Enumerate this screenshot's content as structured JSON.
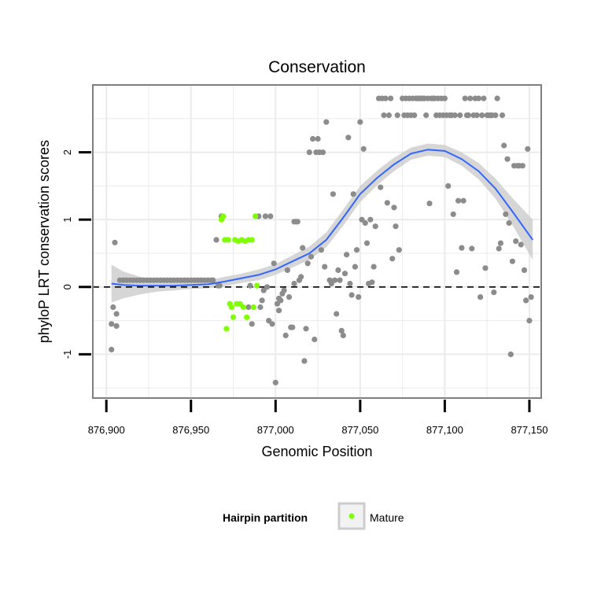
{
  "chart_data": {
    "type": "scatter",
    "title": "Conservation",
    "xlabel": "Genomic Position",
    "ylabel": "phyloP LRT conservation scores",
    "xlim": [
      876892,
      877157
    ],
    "ylim": [
      -1.65,
      3.0
    ],
    "x_ticks": [
      876900,
      876950,
      877000,
      877050,
      877100,
      877150
    ],
    "x_tick_labels": [
      "876,900",
      "876,950",
      "877,000",
      "877,050",
      "877,100",
      "877,150"
    ],
    "y_ticks": [
      -1,
      0,
      1,
      2
    ],
    "y_tick_labels": [
      "-1",
      "0",
      "1",
      "2"
    ],
    "grid": true,
    "reference_line": {
      "y": 0,
      "style": "dashed"
    },
    "legend": {
      "title": "Hairpin partition",
      "placement": "bottom",
      "entries": [
        {
          "label": "Mature",
          "color": "#7FFF00"
        }
      ]
    },
    "colors": {
      "points": "#8c8c8c",
      "mature": "#7FFF00",
      "smooth": "#3366FF",
      "band": "#cccccc",
      "panel_border": "#7f7f7f",
      "grid": "#ebebeb"
    },
    "series": [
      {
        "points": [
          [
            876903,
            -0.55
          ],
          [
            876903,
            -0.93
          ],
          [
            876904,
            -0.3
          ],
          [
            876905,
            0.66
          ],
          [
            876906,
            -0.58
          ],
          [
            876906,
            -0.4
          ],
          [
            876908,
            0.1
          ],
          [
            876910,
            0.1
          ],
          [
            876912,
            0.1
          ],
          [
            876914,
            0.1
          ],
          [
            876916,
            0.1
          ],
          [
            876918,
            0.1
          ],
          [
            876920,
            0.1
          ],
          [
            876922,
            0.1
          ],
          [
            876924,
            0.1
          ],
          [
            876926,
            0.1
          ],
          [
            876928,
            0.1
          ],
          [
            876930,
            0.1
          ],
          [
            876932,
            0.1
          ],
          [
            876934,
            0.1
          ],
          [
            876936,
            0.1
          ],
          [
            876938,
            0.1
          ],
          [
            876940,
            0.1
          ],
          [
            876942,
            0.1
          ],
          [
            876944,
            0.1
          ],
          [
            876946,
            0.1
          ],
          [
            876948,
            0.1
          ],
          [
            876950,
            0.1
          ],
          [
            876952,
            0.1
          ],
          [
            876954,
            0.1
          ],
          [
            876956,
            0.1
          ],
          [
            876958,
            0.1
          ],
          [
            876960,
            0.1
          ],
          [
            876962,
            0.1
          ],
          [
            876963,
            0.1
          ],
          [
            876965,
            0.7
          ],
          [
            876966,
            0.02
          ],
          [
            876967,
            0.02
          ],
          [
            876968,
            1.05
          ],
          [
            876984,
            -0.3
          ],
          [
            876985,
            0.02
          ],
          [
            876986,
            -0.55
          ],
          [
            876990,
            1.05
          ],
          [
            876991,
            -0.3
          ],
          [
            876992,
            -0.2
          ],
          [
            876993,
            -0.05
          ],
          [
            876994,
            1.05
          ],
          [
            876995,
            0.0
          ],
          [
            876996,
            -0.5
          ],
          [
            876997,
            1.05
          ],
          [
            876998,
            -0.55
          ],
          [
            876999,
            0.35
          ],
          [
            877000,
            -1.42
          ],
          [
            877001,
            -0.25
          ],
          [
            877002,
            -0.17
          ],
          [
            877002,
            -0.35
          ],
          [
            877003,
            -0.2
          ],
          [
            877004,
            -0.1
          ],
          [
            877005,
            -0.05
          ],
          [
            877006,
            -0.72
          ],
          [
            877007,
            0.25
          ],
          [
            877008,
            -0.15
          ],
          [
            877009,
            -0.6
          ],
          [
            877010,
            -0.6
          ],
          [
            877011,
            0.05
          ],
          [
            877011,
            0.97
          ],
          [
            877012,
            0.97
          ],
          [
            877013,
            0.97
          ],
          [
            877014,
            0.1
          ],
          [
            877015,
            0.15
          ],
          [
            877016,
            0.58
          ],
          [
            877017,
            -1.1
          ],
          [
            877018,
            -0.62
          ],
          [
            877019,
            0.35
          ],
          [
            877020,
            2.0
          ],
          [
            877021,
            0.45
          ],
          [
            877022,
            2.2
          ],
          [
            877023,
            -0.78
          ],
          [
            877024,
            2.0
          ],
          [
            877025,
            2.2
          ],
          [
            877026,
            2.0
          ],
          [
            877027,
            0.55
          ],
          [
            877028,
            2.0
          ],
          [
            877029,
            0.3
          ],
          [
            877030,
            2.45
          ],
          [
            877032,
            0.1
          ],
          [
            877033,
            0.05
          ],
          [
            877034,
            1.38
          ],
          [
            877035,
            0.1
          ],
          [
            877036,
            -0.4
          ],
          [
            877037,
            0.25
          ],
          [
            877038,
            0.1
          ],
          [
            877039,
            -0.65
          ],
          [
            877040,
            -0.72
          ],
          [
            877041,
            0.2
          ],
          [
            877042,
            0.48
          ],
          [
            877043,
            2.22
          ],
          [
            877044,
            0.05
          ],
          [
            877045,
            -0.12
          ],
          [
            877046,
            1.38
          ],
          [
            877047,
            0.3
          ],
          [
            877048,
            0.55
          ],
          [
            877049,
            -0.15
          ],
          [
            877050,
            2.45
          ],
          [
            877051,
            1.0
          ],
          [
            877052,
            2.05
          ],
          [
            877053,
            0.95
          ],
          [
            877054,
            0.65
          ],
          [
            877055,
            0.05
          ],
          [
            877056,
            1.0
          ],
          [
            877057,
            0.07
          ],
          [
            877058,
            0.3
          ],
          [
            877059,
            0.9
          ],
          [
            877061,
            2.8
          ],
          [
            877062,
            1.48
          ],
          [
            877063,
            2.8
          ],
          [
            877064,
            2.55
          ],
          [
            877065,
            2.8
          ],
          [
            877066,
            1.25
          ],
          [
            877067,
            2.55
          ],
          [
            877068,
            2.8
          ],
          [
            877069,
            0.42
          ],
          [
            877070,
            1.18
          ],
          [
            877071,
            0.9
          ],
          [
            877072,
            2.55
          ],
          [
            877073,
            0.55
          ],
          [
            877075,
            2.8
          ],
          [
            877076,
            2.55
          ],
          [
            877077,
            2.8
          ],
          [
            877078,
            2.55
          ],
          [
            877079,
            2.8
          ],
          [
            877080,
            2.55
          ],
          [
            877081,
            2.8
          ],
          [
            877082,
            2.55
          ],
          [
            877083,
            2.8
          ],
          [
            877084,
            2.8
          ],
          [
            877085,
            2.8
          ],
          [
            877086,
            2.8
          ],
          [
            877087,
            2.8
          ],
          [
            877088,
            2.8
          ],
          [
            877089,
            2.55
          ],
          [
            877090,
            2.8
          ],
          [
            877091,
            1.24
          ],
          [
            877092,
            2.8
          ],
          [
            877093,
            2.8
          ],
          [
            877094,
            2.8
          ],
          [
            877095,
            2.55
          ],
          [
            877096,
            2.8
          ],
          [
            877097,
            2.55
          ],
          [
            877098,
            2.8
          ],
          [
            877099,
            2.55
          ],
          [
            877100,
            2.8
          ],
          [
            877101,
            2.55
          ],
          [
            877102,
            1.5
          ],
          [
            877103,
            2.55
          ],
          [
            877104,
            2.55
          ],
          [
            877105,
            1.08
          ],
          [
            877106,
            2.55
          ],
          [
            877107,
            0.22
          ],
          [
            877108,
            1.28
          ],
          [
            877109,
            2.55
          ],
          [
            877110,
            0.58
          ],
          [
            877111,
            1.28
          ],
          [
            877112,
            2.8
          ],
          [
            877113,
            2.55
          ],
          [
            877114,
            2.55
          ],
          [
            877115,
            2.8
          ],
          [
            877116,
            0.57
          ],
          [
            877117,
            2.55
          ],
          [
            877118,
            2.8
          ],
          [
            877119,
            2.55
          ],
          [
            877120,
            2.8
          ],
          [
            877121,
            -0.15
          ],
          [
            877122,
            2.55
          ],
          [
            877123,
            2.8
          ],
          [
            877124,
            0.28
          ],
          [
            877125,
            2.55
          ],
          [
            877126,
            2.55
          ],
          [
            877127,
            2.55
          ],
          [
            877128,
            2.55
          ],
          [
            877129,
            -0.08
          ],
          [
            877130,
            2.55
          ],
          [
            877131,
            2.8
          ],
          [
            877132,
            0.57
          ],
          [
            877133,
            0.65
          ],
          [
            877134,
            2.55
          ],
          [
            877135,
            2.1
          ],
          [
            877136,
            1.08
          ],
          [
            877137,
            1.9
          ],
          [
            877138,
            0.95
          ],
          [
            877139,
            -1.0
          ],
          [
            877140,
            0.38
          ],
          [
            877141,
            1.8
          ],
          [
            877142,
            0.68
          ],
          [
            877143,
            1.8
          ],
          [
            877144,
            1.8
          ],
          [
            877145,
            0.63
          ],
          [
            877146,
            1.8
          ],
          [
            877147,
            0.25
          ],
          [
            877148,
            -0.2
          ],
          [
            877149,
            2.05
          ],
          [
            877150,
            -0.5
          ],
          [
            877151,
            -0.15
          ]
        ]
      },
      {
        "name": "Mature",
        "points": [
          [
            876968,
            1.0
          ],
          [
            876969,
            1.05
          ],
          [
            876970,
            0.7
          ],
          [
            876971,
            -0.62
          ],
          [
            876972,
            0.7
          ],
          [
            876973,
            -0.25
          ],
          [
            876974,
            -0.3
          ],
          [
            876975,
            -0.45
          ],
          [
            876976,
            0.7
          ],
          [
            876977,
            -0.25
          ],
          [
            876978,
            0.68
          ],
          [
            876979,
            -0.25
          ],
          [
            876980,
            0.7
          ],
          [
            876981,
            -0.3
          ],
          [
            876982,
            0.68
          ],
          [
            876983,
            -0.45
          ],
          [
            876984,
            0.7
          ],
          [
            876986,
            0.7
          ],
          [
            876987,
            -0.3
          ],
          [
            876988,
            1.05
          ],
          [
            876989,
            0.02
          ]
        ]
      }
    ],
    "smooth": {
      "x": [
        876903,
        876910,
        876920,
        876930,
        876940,
        876950,
        876960,
        876970,
        876980,
        876990,
        877000,
        877010,
        877020,
        877030,
        877040,
        877050,
        877060,
        877070,
        877080,
        877090,
        877100,
        877110,
        877120,
        877130,
        877140,
        877152
      ],
      "y": [
        0.05,
        0.03,
        0.02,
        0.02,
        0.02,
        0.03,
        0.04,
        0.08,
        0.13,
        0.18,
        0.26,
        0.38,
        0.5,
        0.7,
        1.03,
        1.38,
        1.62,
        1.82,
        1.98,
        2.04,
        2.02,
        1.9,
        1.72,
        1.46,
        1.12,
        0.7
      ],
      "se": [
        0.28,
        0.2,
        0.13,
        0.09,
        0.07,
        0.06,
        0.06,
        0.07,
        0.07,
        0.08,
        0.08,
        0.09,
        0.1,
        0.11,
        0.12,
        0.12,
        0.11,
        0.1,
        0.09,
        0.09,
        0.09,
        0.1,
        0.12,
        0.15,
        0.2,
        0.3
      ]
    }
  }
}
